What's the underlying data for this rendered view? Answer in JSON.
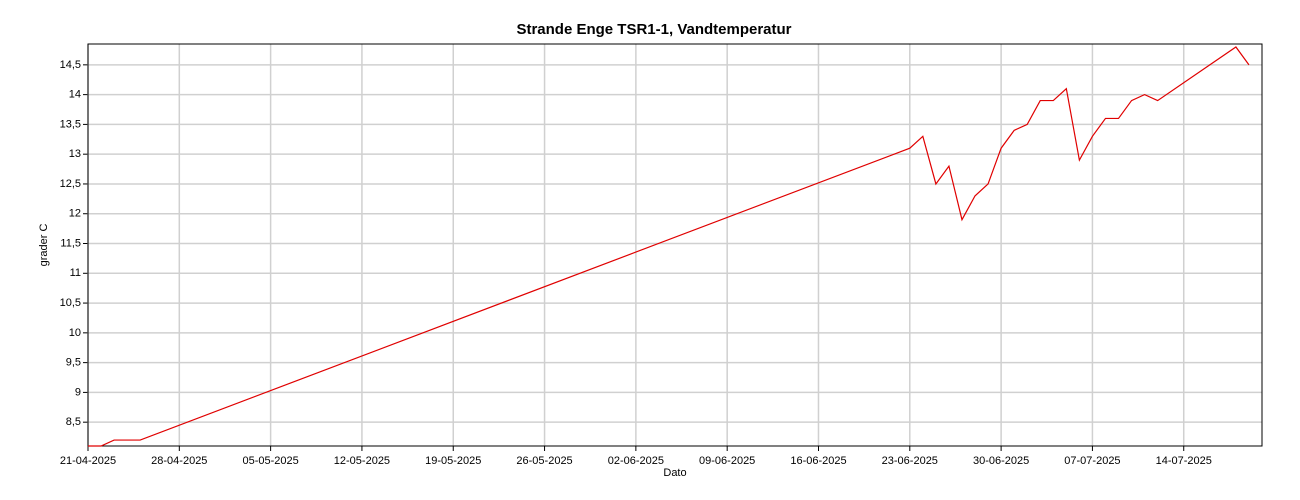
{
  "chart_data": {
    "type": "line",
    "title": "Strande Enge TSR1-1, Vandtemperatur",
    "xlabel": "Dato",
    "ylabel": "grader C",
    "color": "#e00000",
    "grid": true,
    "x": [
      "2025-04-21",
      "2025-04-22",
      "2025-04-23",
      "2025-04-24",
      "2025-04-25",
      "2025-06-23",
      "2025-06-24",
      "2025-06-25",
      "2025-06-26",
      "2025-06-27",
      "2025-06-28",
      "2025-06-29",
      "2025-06-30",
      "2025-07-01",
      "2025-07-02",
      "2025-07-03",
      "2025-07-04",
      "2025-07-05",
      "2025-07-06",
      "2025-07-07",
      "2025-07-08",
      "2025-07-09",
      "2025-07-10",
      "2025-07-11",
      "2025-07-12",
      "2025-07-18",
      "2025-07-19"
    ],
    "values": [
      8.1,
      8.1,
      8.2,
      8.2,
      8.2,
      13.1,
      13.3,
      12.5,
      12.8,
      11.9,
      12.3,
      12.5,
      13.1,
      13.4,
      13.5,
      13.9,
      13.9,
      14.1,
      12.9,
      13.3,
      13.6,
      13.6,
      13.9,
      14.0,
      13.9,
      14.8,
      14.5
    ],
    "xlim": [
      "2025-04-21",
      "2025-07-20"
    ],
    "xticks": [
      {
        "value": "2025-04-21",
        "label": "21-04-2025"
      },
      {
        "value": "2025-04-28",
        "label": "28-04-2025"
      },
      {
        "value": "2025-05-05",
        "label": "05-05-2025"
      },
      {
        "value": "2025-05-12",
        "label": "12-05-2025"
      },
      {
        "value": "2025-05-19",
        "label": "19-05-2025"
      },
      {
        "value": "2025-05-26",
        "label": "26-05-2025"
      },
      {
        "value": "2025-06-02",
        "label": "02-06-2025"
      },
      {
        "value": "2025-06-09",
        "label": "09-06-2025"
      },
      {
        "value": "2025-06-16",
        "label": "16-06-2025"
      },
      {
        "value": "2025-06-23",
        "label": "23-06-2025"
      },
      {
        "value": "2025-06-30",
        "label": "30-06-2025"
      },
      {
        "value": "2025-07-07",
        "label": "07-07-2025"
      },
      {
        "value": "2025-07-14",
        "label": "14-07-2025"
      }
    ],
    "ylim": [
      8.1,
      14.85
    ],
    "yticks": [
      {
        "value": 8.5,
        "label": "8,5"
      },
      9,
      {
        "value": 9.5,
        "label": "9,5"
      },
      10,
      {
        "value": 10.5,
        "label": "10,5"
      },
      11,
      {
        "value": 11.5,
        "label": "11,5"
      },
      12,
      {
        "value": 12.5,
        "label": "12,5"
      },
      13,
      {
        "value": 13.5,
        "label": "13,5"
      },
      14,
      {
        "value": 14.5,
        "label": "14,5"
      }
    ]
  }
}
